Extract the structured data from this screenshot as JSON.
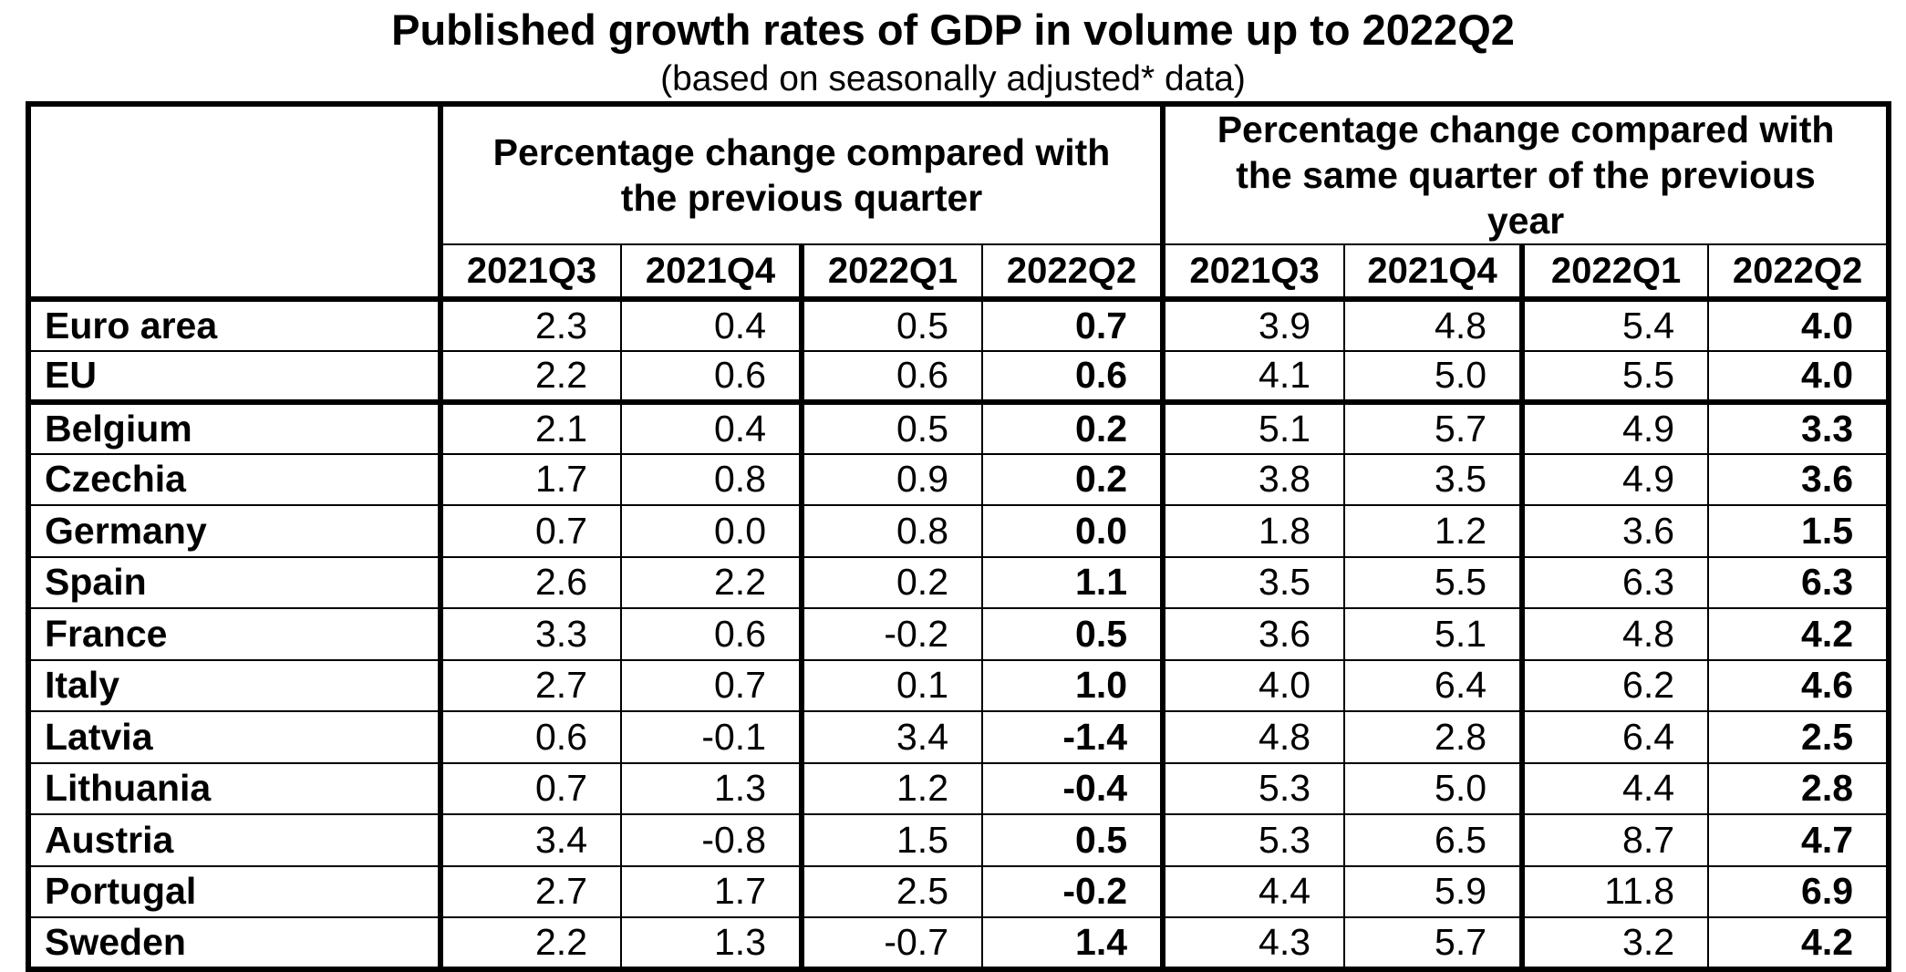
{
  "title": "Published growth rates of GDP in volume up to 2022Q2",
  "subtitle": "(based on seasonally adjusted* data)",
  "table": {
    "group_headers": [
      "Percentage change compared with the previous quarter",
      "Percentage change compared with the same quarter of the previous year"
    ],
    "quarter_headers": [
      "2021Q3",
      "2021Q4",
      "2022Q1",
      "2022Q2"
    ],
    "rows": [
      {
        "label": "Euro area",
        "group": "aggregates",
        "qoq": [
          "2.3",
          "0.4",
          "0.5",
          "0.7"
        ],
        "yoy": [
          "3.9",
          "4.8",
          "5.4",
          "4.0"
        ]
      },
      {
        "label": "EU",
        "group": "aggregates",
        "qoq": [
          "2.2",
          "0.6",
          "0.6",
          "0.6"
        ],
        "yoy": [
          "4.1",
          "5.0",
          "5.5",
          "4.0"
        ]
      },
      {
        "label": "Belgium",
        "group": "countries",
        "qoq": [
          "2.1",
          "0.4",
          "0.5",
          "0.2"
        ],
        "yoy": [
          "5.1",
          "5.7",
          "4.9",
          "3.3"
        ]
      },
      {
        "label": "Czechia",
        "group": "countries",
        "qoq": [
          "1.7",
          "0.8",
          "0.9",
          "0.2"
        ],
        "yoy": [
          "3.8",
          "3.5",
          "4.9",
          "3.6"
        ]
      },
      {
        "label": "Germany",
        "group": "countries",
        "qoq": [
          "0.7",
          "0.0",
          "0.8",
          "0.0"
        ],
        "yoy": [
          "1.8",
          "1.2",
          "3.6",
          "1.5"
        ]
      },
      {
        "label": "Spain",
        "group": "countries",
        "qoq": [
          "2.6",
          "2.2",
          "0.2",
          "1.1"
        ],
        "yoy": [
          "3.5",
          "5.5",
          "6.3",
          "6.3"
        ]
      },
      {
        "label": "France",
        "group": "countries",
        "qoq": [
          "3.3",
          "0.6",
          "-0.2",
          "0.5"
        ],
        "yoy": [
          "3.6",
          "5.1",
          "4.8",
          "4.2"
        ]
      },
      {
        "label": "Italy",
        "group": "countries",
        "qoq": [
          "2.7",
          "0.7",
          "0.1",
          "1.0"
        ],
        "yoy": [
          "4.0",
          "6.4",
          "6.2",
          "4.6"
        ]
      },
      {
        "label": "Latvia",
        "group": "countries",
        "qoq": [
          "0.6",
          "-0.1",
          "3.4",
          "-1.4"
        ],
        "yoy": [
          "4.8",
          "2.8",
          "6.4",
          "2.5"
        ]
      },
      {
        "label": "Lithuania",
        "group": "countries",
        "qoq": [
          "0.7",
          "1.3",
          "1.2",
          "-0.4"
        ],
        "yoy": [
          "5.3",
          "5.0",
          "4.4",
          "2.8"
        ]
      },
      {
        "label": "Austria",
        "group": "countries",
        "qoq": [
          "3.4",
          "-0.8",
          "1.5",
          "0.5"
        ],
        "yoy": [
          "5.3",
          "6.5",
          "8.7",
          "4.7"
        ]
      },
      {
        "label": "Portugal",
        "group": "countries",
        "qoq": [
          "2.7",
          "1.7",
          "2.5",
          "-0.2"
        ],
        "yoy": [
          "4.4",
          "5.9",
          "11.8",
          "6.9"
        ]
      },
      {
        "label": "Sweden",
        "group": "countries",
        "qoq": [
          "2.2",
          "1.3",
          "-0.7",
          "1.4"
        ],
        "yoy": [
          "4.3",
          "5.7",
          "3.2",
          "4.2"
        ]
      }
    ]
  }
}
